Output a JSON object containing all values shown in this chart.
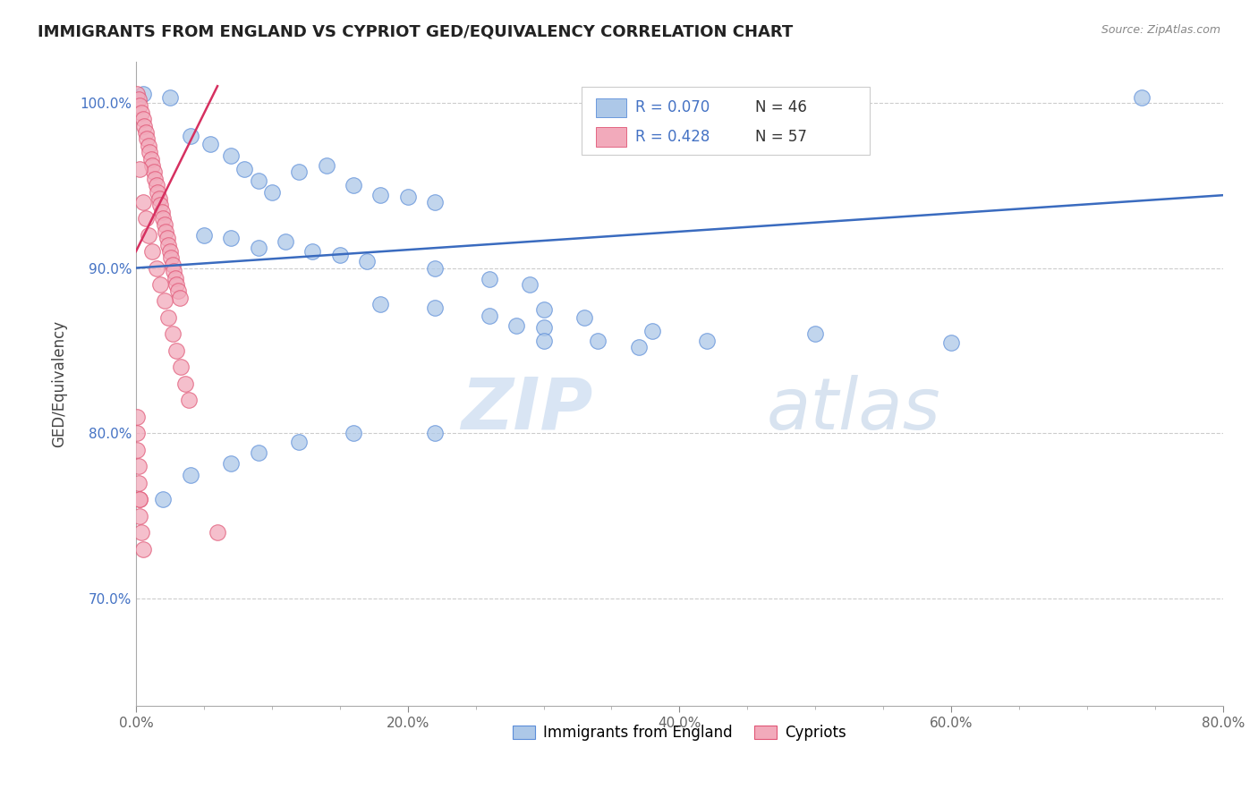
{
  "title": "IMMIGRANTS FROM ENGLAND VS CYPRIOT GED/EQUIVALENCY CORRELATION CHART",
  "source": "Source: ZipAtlas.com",
  "ylabel": "GED/Equivalency",
  "legend_bottom": [
    "Immigrants from England",
    "Cypriots"
  ],
  "legend_r": [
    "R = 0.070",
    "R = 0.428"
  ],
  "legend_n": [
    "N = 46",
    "N = 57"
  ],
  "xlim": [
    0.0,
    0.8
  ],
  "ylim": [
    0.635,
    1.025
  ],
  "xtick_labels": [
    "0.0%",
    "",
    "",
    "",
    "20.0%",
    "",
    "",
    "",
    "40.0%",
    "",
    "",
    "",
    "60.0%",
    "",
    "",
    "",
    "80.0%"
  ],
  "xtick_vals": [
    0.0,
    0.05,
    0.1,
    0.15,
    0.2,
    0.25,
    0.3,
    0.35,
    0.4,
    0.45,
    0.5,
    0.55,
    0.6,
    0.65,
    0.7,
    0.75,
    0.8
  ],
  "ytick_labels": [
    "70.0%",
    "80.0%",
    "90.0%",
    "100.0%"
  ],
  "ytick_vals": [
    0.7,
    0.8,
    0.9,
    1.0
  ],
  "blue_color": "#adc8e8",
  "pink_color": "#f2aabb",
  "blue_edge_color": "#5b8dd9",
  "pink_edge_color": "#e05575",
  "blue_line_color": "#3a6bbf",
  "pink_line_color": "#d63060",
  "watermark_zip": "ZIP",
  "watermark_atlas": "atlas",
  "blue_scatter_x": [
    0.005,
    0.025,
    0.04,
    0.055,
    0.07,
    0.08,
    0.09,
    0.1,
    0.12,
    0.14,
    0.16,
    0.18,
    0.2,
    0.22,
    0.05,
    0.07,
    0.09,
    0.11,
    0.13,
    0.15,
    0.17,
    0.22,
    0.26,
    0.29,
    0.18,
    0.22,
    0.26,
    0.3,
    0.34,
    0.37,
    0.3,
    0.33,
    0.38,
    0.42,
    0.5,
    0.6,
    0.74,
    0.28,
    0.3,
    0.22,
    0.16,
    0.12,
    0.09,
    0.07,
    0.04,
    0.02
  ],
  "blue_scatter_y": [
    1.005,
    1.003,
    0.98,
    0.975,
    0.968,
    0.96,
    0.953,
    0.946,
    0.958,
    0.962,
    0.95,
    0.944,
    0.943,
    0.94,
    0.92,
    0.918,
    0.912,
    0.916,
    0.91,
    0.908,
    0.904,
    0.9,
    0.893,
    0.89,
    0.878,
    0.876,
    0.871,
    0.864,
    0.856,
    0.852,
    0.875,
    0.87,
    0.862,
    0.856,
    0.86,
    0.855,
    1.003,
    0.865,
    0.856,
    0.8,
    0.8,
    0.795,
    0.788,
    0.782,
    0.775,
    0.76
  ],
  "pink_scatter_x": [
    0.001,
    0.002,
    0.003,
    0.004,
    0.005,
    0.006,
    0.007,
    0.008,
    0.009,
    0.01,
    0.011,
    0.012,
    0.013,
    0.014,
    0.015,
    0.016,
    0.017,
    0.018,
    0.019,
    0.02,
    0.021,
    0.022,
    0.023,
    0.024,
    0.025,
    0.026,
    0.027,
    0.028,
    0.029,
    0.03,
    0.031,
    0.032,
    0.003,
    0.005,
    0.007,
    0.009,
    0.012,
    0.015,
    0.018,
    0.021,
    0.024,
    0.027,
    0.03,
    0.033,
    0.036,
    0.039,
    0.001,
    0.001,
    0.001,
    0.002,
    0.002,
    0.003,
    0.003,
    0.004,
    0.005,
    0.06,
    0.003
  ],
  "pink_scatter_y": [
    1.005,
    1.002,
    0.998,
    0.994,
    0.99,
    0.986,
    0.982,
    0.978,
    0.974,
    0.97,
    0.966,
    0.962,
    0.958,
    0.954,
    0.95,
    0.946,
    0.942,
    0.938,
    0.934,
    0.93,
    0.926,
    0.922,
    0.918,
    0.914,
    0.91,
    0.906,
    0.902,
    0.898,
    0.894,
    0.89,
    0.886,
    0.882,
    0.96,
    0.94,
    0.93,
    0.92,
    0.91,
    0.9,
    0.89,
    0.88,
    0.87,
    0.86,
    0.85,
    0.84,
    0.83,
    0.82,
    0.81,
    0.8,
    0.79,
    0.78,
    0.77,
    0.76,
    0.75,
    0.74,
    0.73,
    0.74,
    0.76
  ],
  "blue_trendline": [
    0.0,
    0.8,
    0.9,
    0.944
  ],
  "pink_trendline": [
    0.0,
    0.06,
    0.91,
    1.01
  ]
}
